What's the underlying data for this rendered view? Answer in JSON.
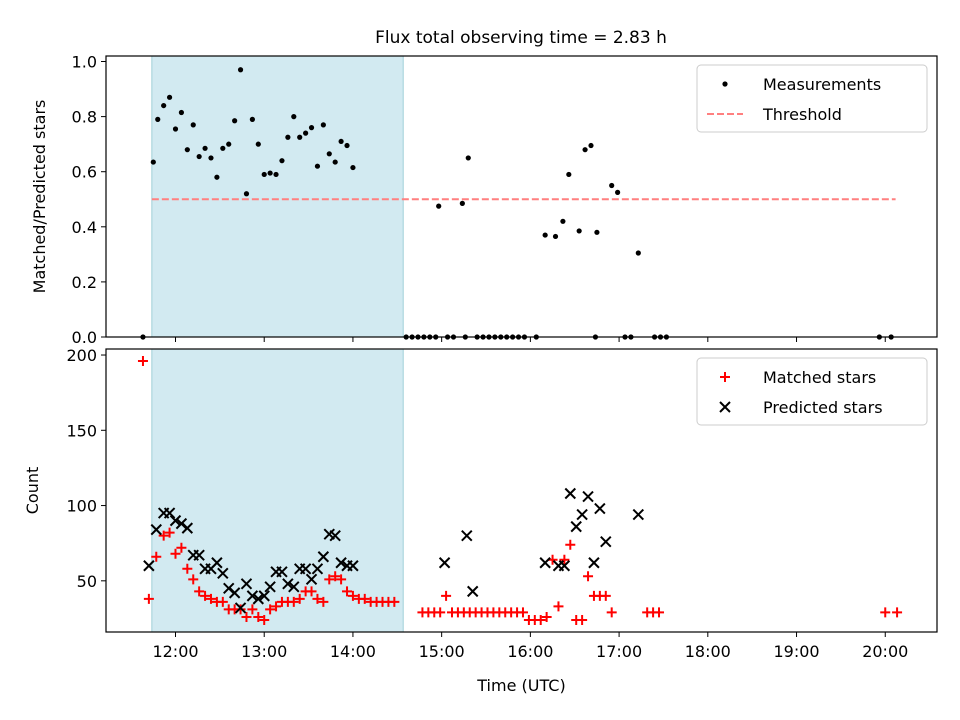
{
  "title": "Flux total observing time = 2.83 h",
  "colors": {
    "measurement": "#000000",
    "threshold": "#ff7f7f",
    "matched": "#ff0000",
    "predicted": "#000000",
    "shade_fill": "#add8e6",
    "shade_edge": "#a0d0d8"
  },
  "chart_data": [
    {
      "type": "scatter",
      "ylabel": "Matched/Predicted stars",
      "xlim": [
        "11:13",
        "20:35"
      ],
      "ylim": [
        0,
        1.02
      ],
      "yticks": [
        0.0,
        0.2,
        0.4,
        0.6,
        0.8,
        1.0
      ],
      "ytick_labels": [
        "0.0",
        "0.2",
        "0.4",
        "0.6",
        "0.8",
        "1.0"
      ],
      "xticks": [
        "12:00",
        "13:00",
        "14:00",
        "15:00",
        "16:00",
        "17:00",
        "18:00",
        "19:00",
        "20:00"
      ],
      "shaded_interval": [
        "11:44",
        "14:34"
      ],
      "legend_position": "upper right",
      "series": [
        {
          "name": "Measurements",
          "marker": "dot",
          "points": [
            [
              "11:38",
              0.0
            ],
            [
              "11:45",
              0.635
            ],
            [
              "11:48",
              0.79
            ],
            [
              "11:52",
              0.84
            ],
            [
              "11:56",
              0.87
            ],
            [
              "12:00",
              0.755
            ],
            [
              "12:04",
              0.815
            ],
            [
              "12:08",
              0.68
            ],
            [
              "12:12",
              0.77
            ],
            [
              "12:16",
              0.655
            ],
            [
              "12:20",
              0.685
            ],
            [
              "12:24",
              0.65
            ],
            [
              "12:28",
              0.58
            ],
            [
              "12:32",
              0.685
            ],
            [
              "12:36",
              0.7
            ],
            [
              "12:40",
              0.785
            ],
            [
              "12:44",
              0.97
            ],
            [
              "12:48",
              0.52
            ],
            [
              "12:52",
              0.79
            ],
            [
              "12:56",
              0.7
            ],
            [
              "13:00",
              0.59
            ],
            [
              "13:04",
              0.595
            ],
            [
              "13:08",
              0.59
            ],
            [
              "13:12",
              0.64
            ],
            [
              "13:16",
              0.725
            ],
            [
              "13:20",
              0.8
            ],
            [
              "13:24",
              0.725
            ],
            [
              "13:28",
              0.74
            ],
            [
              "13:32",
              0.76
            ],
            [
              "13:36",
              0.62
            ],
            [
              "13:40",
              0.77
            ],
            [
              "13:44",
              0.665
            ],
            [
              "13:48",
              0.635
            ],
            [
              "13:52",
              0.71
            ],
            [
              "13:56",
              0.695
            ],
            [
              "14:00",
              0.615
            ],
            [
              "14:36",
              0.0
            ],
            [
              "14:40",
              0.0
            ],
            [
              "14:44",
              0.0
            ],
            [
              "14:48",
              0.0
            ],
            [
              "14:52",
              0.0
            ],
            [
              "14:56",
              0.0
            ],
            [
              "15:04",
              0.0
            ],
            [
              "15:08",
              0.0
            ],
            [
              "15:16",
              0.0
            ],
            [
              "15:24",
              0.0
            ],
            [
              "15:28",
              0.0
            ],
            [
              "15:32",
              0.0
            ],
            [
              "15:36",
              0.0
            ],
            [
              "15:40",
              0.0
            ],
            [
              "15:44",
              0.0
            ],
            [
              "15:48",
              0.0
            ],
            [
              "15:52",
              0.0
            ],
            [
              "15:56",
              0.0
            ],
            [
              "16:04",
              0.0
            ],
            [
              "16:44",
              0.0
            ],
            [
              "17:04",
              0.0
            ],
            [
              "17:08",
              0.0
            ],
            [
              "17:24",
              0.0
            ],
            [
              "17:28",
              0.0
            ],
            [
              "17:32",
              0.0
            ],
            [
              "19:56",
              0.0
            ],
            [
              "20:04",
              0.0
            ],
            [
              "14:58",
              0.475
            ],
            [
              "15:14",
              0.485
            ],
            [
              "15:18",
              0.65
            ],
            [
              "16:10",
              0.37
            ],
            [
              "16:17",
              0.365
            ],
            [
              "16:22",
              0.42
            ],
            [
              "16:26",
              0.59
            ],
            [
              "16:33",
              0.385
            ],
            [
              "16:37",
              0.68
            ],
            [
              "16:41",
              0.695
            ],
            [
              "16:45",
              0.38
            ],
            [
              "16:55",
              0.55
            ],
            [
              "16:59",
              0.525
            ],
            [
              "17:13",
              0.305
            ]
          ]
        },
        {
          "name": "Threshold",
          "marker": "dashed-line",
          "points": [
            [
              "11:44",
              0.5
            ],
            [
              "20:07",
              0.5
            ]
          ]
        }
      ]
    },
    {
      "type": "scatter",
      "xlabel": "Time (UTC)",
      "ylabel": "Count",
      "xlim": [
        "11:13",
        "20:35"
      ],
      "ylim": [
        16,
        204
      ],
      "yticks": [
        50,
        100,
        150,
        200
      ],
      "ytick_labels": [
        "50",
        "100",
        "150",
        "200"
      ],
      "xticks": [
        "12:00",
        "13:00",
        "14:00",
        "15:00",
        "16:00",
        "17:00",
        "18:00",
        "19:00",
        "20:00"
      ],
      "shaded_interval": [
        "11:44",
        "14:34"
      ],
      "legend_position": "upper right",
      "series": [
        {
          "name": "Matched stars",
          "marker": "plus",
          "points": [
            [
              "11:38",
              196
            ],
            [
              "11:42",
              38
            ],
            [
              "11:47",
              66
            ],
            [
              "11:52",
              80
            ],
            [
              "11:56",
              82
            ],
            [
              "12:00",
              68
            ],
            [
              "12:04",
              72
            ],
            [
              "12:08",
              58
            ],
            [
              "12:12",
              51
            ],
            [
              "12:16",
              43
            ],
            [
              "12:20",
              40
            ],
            [
              "12:24",
              38
            ],
            [
              "12:28",
              36
            ],
            [
              "12:32",
              36
            ],
            [
              "12:36",
              31
            ],
            [
              "12:40",
              31
            ],
            [
              "12:44",
              31
            ],
            [
              "12:48",
              26
            ],
            [
              "12:52",
              31
            ],
            [
              "12:56",
              26
            ],
            [
              "13:00",
              24
            ],
            [
              "13:04",
              31
            ],
            [
              "13:08",
              33
            ],
            [
              "13:12",
              36
            ],
            [
              "13:16",
              36
            ],
            [
              "13:20",
              36
            ],
            [
              "13:24",
              38
            ],
            [
              "13:28",
              43
            ],
            [
              "13:32",
              43
            ],
            [
              "13:36",
              38
            ],
            [
              "13:40",
              36
            ],
            [
              "13:44",
              51
            ],
            [
              "13:48",
              53
            ],
            [
              "13:52",
              51
            ],
            [
              "13:56",
              43
            ],
            [
              "14:00",
              40
            ],
            [
              "14:04",
              38
            ],
            [
              "14:08",
              38
            ],
            [
              "14:12",
              36
            ],
            [
              "14:16",
              36
            ],
            [
              "14:20",
              36
            ],
            [
              "14:24",
              36
            ],
            [
              "14:28",
              36
            ],
            [
              "14:47",
              29
            ],
            [
              "14:51",
              29
            ],
            [
              "14:55",
              29
            ],
            [
              "14:59",
              29
            ],
            [
              "15:03",
              40
            ],
            [
              "15:07",
              29
            ],
            [
              "15:11",
              29
            ],
            [
              "15:15",
              29
            ],
            [
              "15:19",
              29
            ],
            [
              "15:23",
              29
            ],
            [
              "15:27",
              29
            ],
            [
              "15:31",
              29
            ],
            [
              "15:35",
              29
            ],
            [
              "15:39",
              29
            ],
            [
              "15:43",
              29
            ],
            [
              "15:47",
              29
            ],
            [
              "15:51",
              29
            ],
            [
              "15:55",
              29
            ],
            [
              "15:59",
              24
            ],
            [
              "16:03",
              24
            ],
            [
              "16:07",
              24
            ],
            [
              "16:11",
              26
            ],
            [
              "16:15",
              64
            ],
            [
              "16:19",
              33
            ],
            [
              "16:23",
              64
            ],
            [
              "16:27",
              74
            ],
            [
              "16:31",
              24
            ],
            [
              "16:35",
              24
            ],
            [
              "16:39",
              53
            ],
            [
              "16:43",
              40
            ],
            [
              "16:47",
              40
            ],
            [
              "16:51",
              40
            ],
            [
              "16:55",
              29
            ],
            [
              "17:19",
              29
            ],
            [
              "17:23",
              29
            ],
            [
              "17:27",
              29
            ],
            [
              "20:00",
              29
            ],
            [
              "20:08",
              29
            ]
          ]
        },
        {
          "name": "Predicted stars",
          "marker": "x",
          "points": [
            [
              "11:42",
              60
            ],
            [
              "11:47",
              84
            ],
            [
              "11:52",
              95
            ],
            [
              "11:56",
              95
            ],
            [
              "12:00",
              90
            ],
            [
              "12:04",
              88
            ],
            [
              "12:08",
              85
            ],
            [
              "12:12",
              67
            ],
            [
              "12:16",
              67
            ],
            [
              "12:20",
              58
            ],
            [
              "12:24",
              58
            ],
            [
              "12:28",
              62
            ],
            [
              "12:32",
              55
            ],
            [
              "12:36",
              45
            ],
            [
              "12:40",
              42
            ],
            [
              "12:44",
              32
            ],
            [
              "12:48",
              48
            ],
            [
              "12:52",
              40
            ],
            [
              "12:56",
              38
            ],
            [
              "13:00",
              40
            ],
            [
              "13:04",
              46
            ],
            [
              "13:08",
              56
            ],
            [
              "13:12",
              56
            ],
            [
              "13:16",
              48
            ],
            [
              "13:20",
              46
            ],
            [
              "13:24",
              58
            ],
            [
              "13:28",
              58
            ],
            [
              "13:32",
              51
            ],
            [
              "13:36",
              58
            ],
            [
              "13:40",
              66
            ],
            [
              "13:44",
              81
            ],
            [
              "13:48",
              80
            ],
            [
              "13:52",
              62
            ],
            [
              "13:56",
              60
            ],
            [
              "14:00",
              60
            ],
            [
              "15:02",
              62
            ],
            [
              "15:17",
              80
            ],
            [
              "15:21",
              43
            ],
            [
              "16:10",
              62
            ],
            [
              "16:19",
              60
            ],
            [
              "16:23",
              60
            ],
            [
              "16:27",
              108
            ],
            [
              "16:31",
              86
            ],
            [
              "16:35",
              94
            ],
            [
              "16:39",
              106
            ],
            [
              "16:43",
              62
            ],
            [
              "16:47",
              98
            ],
            [
              "16:51",
              76
            ],
            [
              "17:13",
              94
            ]
          ]
        }
      ]
    }
  ]
}
